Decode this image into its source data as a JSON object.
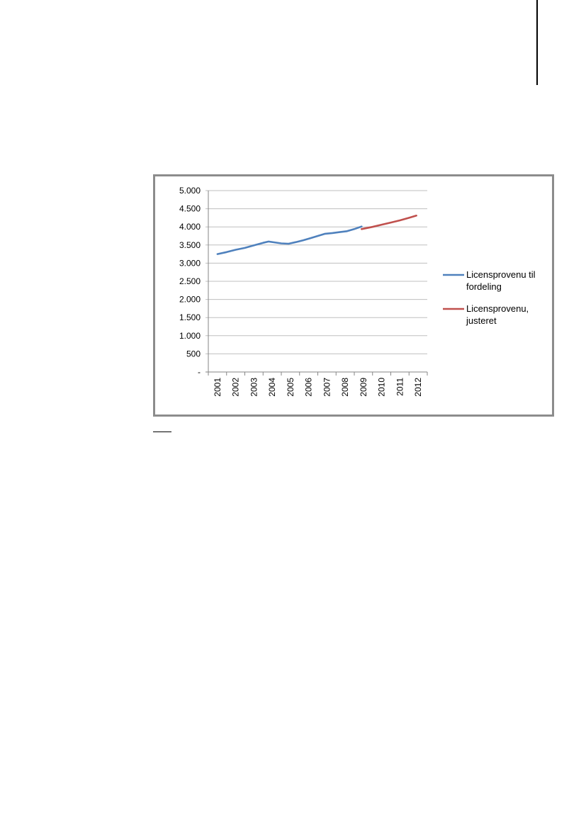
{
  "chart_data": {
    "type": "line",
    "x_ticks": [
      "2001",
      "2002",
      "2003",
      "2004",
      "2005",
      "2006",
      "2007",
      "2008",
      "2009",
      "2010",
      "2011",
      "2012"
    ],
    "y_ticks": [
      {
        "value": 5000,
        "label": "5.000"
      },
      {
        "value": 4500,
        "label": "4.500"
      },
      {
        "value": 4000,
        "label": "4.000"
      },
      {
        "value": 3500,
        "label": "3.500"
      },
      {
        "value": 3000,
        "label": "3.000"
      },
      {
        "value": 2500,
        "label": "2.500"
      },
      {
        "value": 2000,
        "label": "2.000"
      },
      {
        "value": 1500,
        "label": "1.500"
      },
      {
        "value": 1000,
        "label": "1.000"
      },
      {
        "value": 500,
        "label": "500"
      },
      {
        "value": 0,
        "label": "-"
      }
    ],
    "ylim": [
      0,
      5000
    ],
    "xlim": [
      2001,
      2013
    ],
    "grid": "horizontal",
    "legend_position": "right",
    "series": [
      {
        "name": "Licensprovenu til fordeling",
        "color": "#4f81bd",
        "points": [
          [
            2001.5,
            3250
          ],
          [
            2002.0,
            3305
          ],
          [
            2002.5,
            3370
          ],
          [
            2003.0,
            3420
          ],
          [
            2003.5,
            3490
          ],
          [
            2004.0,
            3560
          ],
          [
            2004.3,
            3595
          ],
          [
            2004.6,
            3575
          ],
          [
            2005.0,
            3545
          ],
          [
            2005.4,
            3535
          ],
          [
            2005.8,
            3580
          ],
          [
            2006.2,
            3630
          ],
          [
            2006.6,
            3690
          ],
          [
            2007.0,
            3750
          ],
          [
            2007.4,
            3810
          ],
          [
            2007.8,
            3830
          ],
          [
            2008.2,
            3855
          ],
          [
            2008.6,
            3880
          ],
          [
            2009.0,
            3940
          ],
          [
            2009.4,
            4010
          ]
        ]
      },
      {
        "name": "Licensprovenu, justeret",
        "color": "#c0504d",
        "points": [
          [
            2009.4,
            3940
          ],
          [
            2010.0,
            4000
          ],
          [
            2010.5,
            4060
          ],
          [
            2011.0,
            4120
          ],
          [
            2011.5,
            4180
          ],
          [
            2012.0,
            4250
          ],
          [
            2012.4,
            4310
          ]
        ]
      }
    ]
  }
}
